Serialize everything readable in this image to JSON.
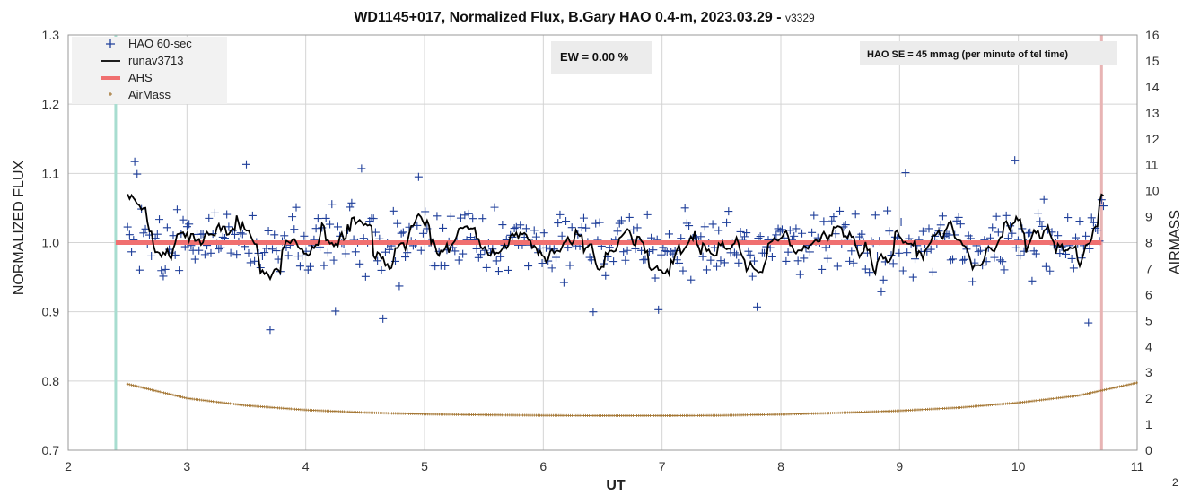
{
  "chart_data": {
    "type": "scatter",
    "title": "WD1145+017, Normalized Flux, B.Gary HAO 0.4-m, 2023.03.29 - ",
    "version_label": "v3329",
    "xlabel": "UT",
    "ylabel": "NORMALIZED FLUX",
    "y2label": "AIRMASS",
    "xlim": [
      2,
      11
    ],
    "ylim": [
      0.7,
      1.3
    ],
    "y2lim": [
      0,
      16
    ],
    "x_ticks": [
      "2",
      "3",
      "4",
      "5",
      "6",
      "7",
      "8",
      "9",
      "10",
      "11"
    ],
    "y_ticks": [
      "0.7",
      "0.8",
      "0.9",
      "1.0",
      "1.1",
      "1.2",
      "1.3"
    ],
    "y2_ticks": [
      "0",
      "1",
      "2",
      "3",
      "4",
      "5",
      "6",
      "7",
      "8",
      "9",
      "10",
      "11",
      "12",
      "13",
      "14",
      "15",
      "16"
    ],
    "grid": true,
    "legend_position": "top-left",
    "legend": [
      {
        "name": "HAO 60-sec",
        "marker": "plus",
        "color": "#1f3f9a"
      },
      {
        "name": "runav3713",
        "marker": "line",
        "color": "#000000"
      },
      {
        "name": "AHS",
        "marker": "thick-line",
        "color": "#f07070"
      },
      {
        "name": "AirMass",
        "marker": "dot",
        "color": "#a0702a"
      }
    ],
    "annotations": {
      "ew_box": "EW = 0.00 %",
      "se_box": "HAO SE =  45 mmag (per minute of tel time)",
      "corner_label": "2"
    },
    "vertical_markers": [
      {
        "x": 2.4,
        "color": "#a8ddd0"
      },
      {
        "x": 10.7,
        "color": "#e8b4b4"
      }
    ],
    "ahs": {
      "x": [
        2.4,
        10.7
      ],
      "y": [
        1.0,
        1.0
      ],
      "color": "#f07070"
    },
    "airmass": {
      "x_start": 2.5,
      "x_end": 11.0,
      "x": [
        2.5,
        3.0,
        3.5,
        4.0,
        4.5,
        5.0,
        5.5,
        6.0,
        6.5,
        7.0,
        7.5,
        8.0,
        8.5,
        9.0,
        9.5,
        10.0,
        10.5,
        11.0
      ],
      "y": [
        2.55,
        2.0,
        1.72,
        1.55,
        1.45,
        1.39,
        1.36,
        1.34,
        1.33,
        1.33,
        1.34,
        1.38,
        1.44,
        1.52,
        1.64,
        1.83,
        2.1,
        2.6
      ],
      "color": "#a0702a"
    },
    "flux": {
      "x_start": 2.5,
      "x_end": 10.72,
      "mean": 1.0,
      "scatter_sigma": 0.045,
      "color": "#1f3f9a",
      "outliers": [
        {
          "x": 2.56,
          "y": 1.117
        },
        {
          "x": 2.58,
          "y": 1.099
        },
        {
          "x": 3.5,
          "y": 1.113
        },
        {
          "x": 3.7,
          "y": 0.874
        },
        {
          "x": 4.47,
          "y": 1.107
        },
        {
          "x": 4.25,
          "y": 0.901
        },
        {
          "x": 4.65,
          "y": 0.89
        },
        {
          "x": 4.95,
          "y": 1.095
        },
        {
          "x": 6.42,
          "y": 0.9
        },
        {
          "x": 6.97,
          "y": 0.903
        },
        {
          "x": 7.8,
          "y": 0.907
        },
        {
          "x": 9.05,
          "y": 1.101
        },
        {
          "x": 9.97,
          "y": 1.119
        },
        {
          "x": 10.59,
          "y": 0.884
        },
        {
          "x": 10.7,
          "y": 1.062
        }
      ]
    },
    "runav": {
      "color": "#000000",
      "window": 5
    }
  }
}
